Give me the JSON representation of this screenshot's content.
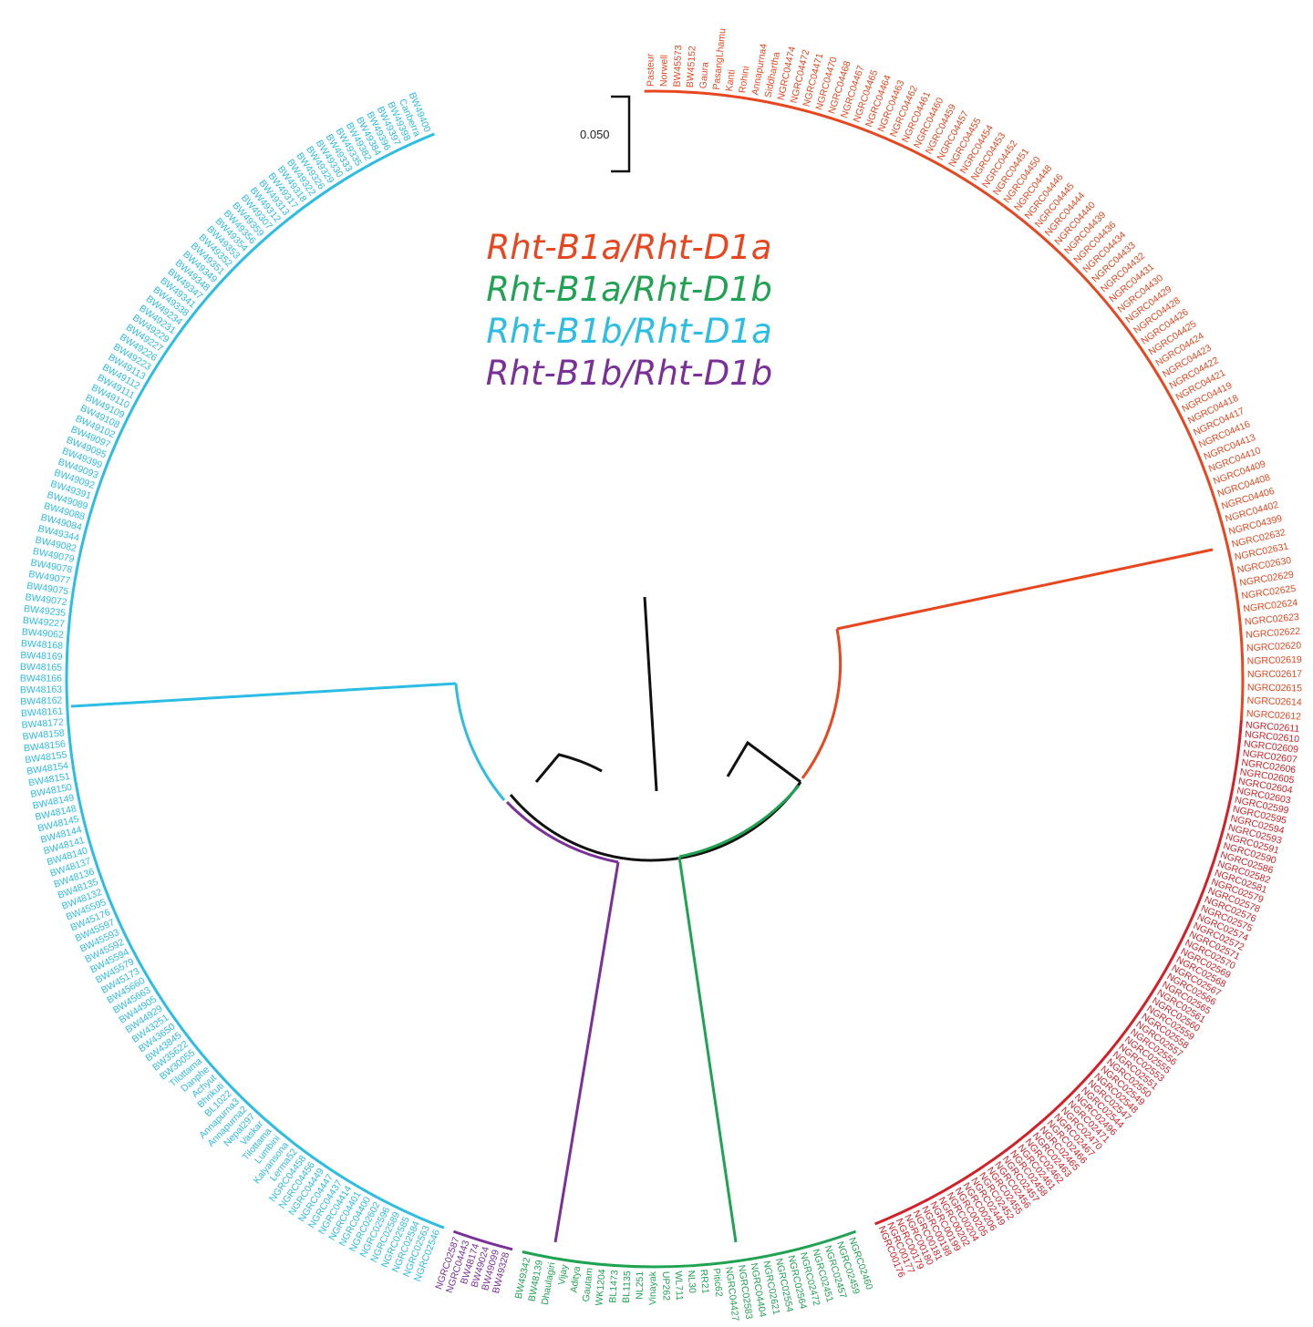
{
  "title": "",
  "scale_bar": {
    "label": "0.050"
  },
  "legend": [
    {
      "label": "Rht-B1a/Rht-D1a",
      "color": "#e8461e"
    },
    {
      "label": "Rht-B1a/Rht-D1b",
      "color": "#1fa353"
    },
    {
      "label": "Rht-B1b/Rht-D1a",
      "color": "#2bbde3"
    },
    {
      "label": "Rht-B1b/Rht-D1b",
      "color": "#7a2f99"
    }
  ],
  "groups": [
    {
      "id": "orange",
      "color": "#e8461e",
      "leaves": [
        "Pasteur",
        "Norwell",
        "BW45573",
        "BW45152",
        "Gaura",
        "PasangLhamu",
        "Kanti",
        "Rohini",
        "Annapurna4",
        "Siddhartha",
        "NGRC04474",
        "NGRC04472",
        "NGRC04471",
        "NGRC04470",
        "NGRC04468",
        "NGRC04467",
        "NGRC04465",
        "NGRC04464",
        "NGRC04463",
        "NGRC04462",
        "NGRC04461",
        "NGRC04460",
        "NGRC04459",
        "NGRC04457",
        "NGRC04455",
        "NGRC04454",
        "NGRC04453",
        "NGRC04452",
        "NGRC04451",
        "NGRC04450",
        "NGRC04448",
        "NGRC04446",
        "NGRC04445",
        "NGRC04444",
        "NGRC04440",
        "NGRC04439",
        "NGRC04436",
        "NGRC04434",
        "NGRC04433",
        "NGRC04432",
        "NGRC04431",
        "NGRC04430",
        "NGRC04429",
        "NGRC04428",
        "NGRC04426",
        "NGRC04425",
        "NGRC04424",
        "NGRC04423",
        "NGRC04422",
        "NGRC04421",
        "NGRC04419",
        "NGRC04418",
        "NGRC04417",
        "NGRC04416",
        "NGRC04413",
        "NGRC04410",
        "NGRC04409",
        "NGRC04408",
        "NGRC04406",
        "NGRC04402",
        "NGRC04399",
        "NGRC02632",
        "NGRC02631",
        "NGRC02630",
        "NGRC02629",
        "NGRC02625",
        "NGRC02624",
        "NGRC02623",
        "NGRC02622",
        "NGRC02620",
        "NGRC02619",
        "NGRC02617",
        "NGRC02615",
        "NGRC02614",
        "NGRC02612"
      ]
    },
    {
      "id": "red",
      "color": "#d41f26",
      "leaves": [
        "NGRC02611",
        "NGRC02610",
        "NGRC02609",
        "NGRC02607",
        "NGRC02606",
        "NGRC02605",
        "NGRC02604",
        "NGRC02603",
        "NGRC02599",
        "NGRC02595",
        "NGRC02594",
        "NGRC02593",
        "NGRC02591",
        "NGRC02590",
        "NGRC02586",
        "NGRC02582",
        "NGRC02581",
        "NGRC02579",
        "NGRC02578",
        "NGRC02576",
        "NGRC02575",
        "NGRC02574",
        "NGRC02572",
        "NGRC02571",
        "NGRC02570",
        "NGRC02569",
        "NGRC02568",
        "NGRC02567",
        "NGRC02566",
        "NGRC02565",
        "NGRC02561",
        "NGRC02560",
        "NGRC02559",
        "NGRC02558",
        "NGRC02557",
        "NGRC02556",
        "NGRC02555",
        "NGRC02553",
        "NGRC02551",
        "NGRC02550",
        "NGRC02549",
        "NGRC02548",
        "NGRC02547",
        "NGRC02544",
        "NGRC02496",
        "NGRC02471",
        "NGRC02470",
        "NGRC02467",
        "NGRC02466",
        "NGRC02465",
        "NGRC02463",
        "NGRC02462",
        "NGRC02461",
        "NGRC02458",
        "NGRC02457",
        "NGRC02456",
        "NGRC02455",
        "NGRC02452",
        "NGRC02449",
        "NGRC00206",
        "NGRC00205",
        "NGRC00204",
        "NGRC00202",
        "NGRC00199",
        "NGRC00198",
        "NGRC00181",
        "NGRC00180",
        "NGRC00179",
        "NGRC00177",
        "NGRC00176"
      ]
    },
    {
      "id": "green",
      "color": "#1fa353",
      "leaves": [
        "NGRC02460",
        "NGRC02459",
        "NGRC02457",
        "NGRC02451",
        "NGRC02472",
        "NGRC02564",
        "NGRC02554",
        "NGRC02621",
        "NGRC04404",
        "NGRC02583",
        "NGRC04427",
        "Pitic62",
        "RR21",
        "NL30",
        "WL711",
        "UP262",
        "Vinayak",
        "NL251",
        "BL1135",
        "BL1473",
        "WK1204",
        "Gautam",
        "Aditya",
        "Vijay",
        "Dhaulagiri",
        "BW48139",
        "BW49342"
      ]
    },
    {
      "id": "purple",
      "color": "#7a2f99",
      "leaves": [
        "BW49328",
        "BW49099",
        "BW49024",
        "BW48174",
        "NGRC04443",
        "NGRC02587"
      ]
    },
    {
      "id": "cyan",
      "color": "#2bbde3",
      "leaves": [
        "NGRC02546",
        "NGRC02563",
        "NGRC02584",
        "NGRC02585",
        "NGRC02589",
        "NGRC02596",
        "NGRC02602",
        "NGRC04400",
        "NGRC04401",
        "NGRC04414",
        "NGRC04437",
        "NGRC04447",
        "NGRC04449",
        "NGRC04456",
        "NGRC04458",
        "Lerma52",
        "Kalyansona",
        "Lumbini",
        "Tilottama",
        "Vaskar",
        "Nepal297",
        "Annapurna2",
        "Annapurna3",
        "BL1022",
        "Bhrikuti",
        "Achyut",
        "Danphe",
        "Tilottama",
        "BW30055",
        "BW35622",
        "BW43845",
        "BW43650",
        "BW43251",
        "BW44929",
        "BW44905",
        "BW45663",
        "BW45660",
        "BW45173",
        "BW45579",
        "BW45594",
        "BW45592",
        "BW45593",
        "BW45597",
        "BW45176",
        "BW45595",
        "BW48132",
        "BW48135",
        "BW48136",
        "BW48137",
        "BW48140",
        "BW48141",
        "BW48144",
        "BW48145",
        "BW48148",
        "BW48149",
        "BW48150",
        "BW48151",
        "BW48154",
        "BW48155",
        "BW48156",
        "BW48158",
        "BW48172",
        "BW48161",
        "BW48162",
        "BW48163",
        "BW48166",
        "BW48165",
        "BW48169",
        "BW48168",
        "BW49062",
        "BW49227",
        "BW49235",
        "BW49072",
        "BW49075",
        "BW49077",
        "BW49078",
        "BW49079",
        "BW49082",
        "BW49344",
        "BW49084",
        "BW49088",
        "BW49089",
        "BW49391",
        "BW49092",
        "BW49093",
        "BW49399",
        "BW49095",
        "BW49097",
        "BW49102",
        "BW49108",
        "BW49109",
        "BW49110",
        "BW49111",
        "BW49112",
        "BW49113",
        "BW49223",
        "BW49226",
        "BW49227",
        "BW49229",
        "BW49231",
        "BW49234",
        "BW49338",
        "BW49341",
        "BW49347",
        "BW49348",
        "BW49349",
        "BW49351",
        "BW49352",
        "BW49353",
        "BW49354",
        "BW49356",
        "BW49359",
        "BW49307",
        "BW49312",
        "BW49313",
        "BW49317",
        "BW49318",
        "BW49322",
        "BW49326",
        "BW49329",
        "BW49330",
        "BW49333",
        "BW49335",
        "BW49382",
        "BW49384",
        "BW49396",
        "BW49397",
        "BW49398",
        "Canberra",
        "BW49400"
      ]
    }
  ]
}
